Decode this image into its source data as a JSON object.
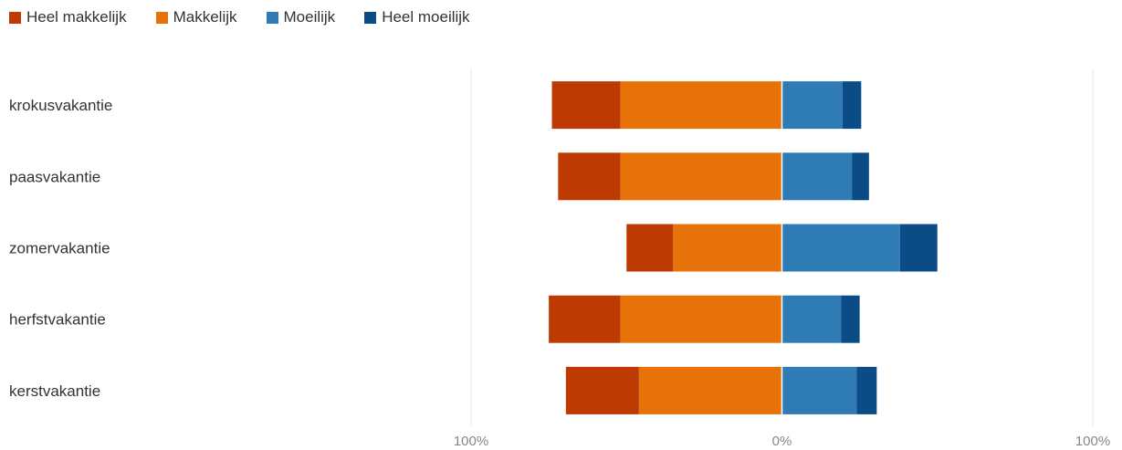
{
  "chart_data": {
    "type": "bar",
    "orientation": "horizontal",
    "stacked": "diverging",
    "categories": [
      "krokusvakantie",
      "paasvakantie",
      "zomervakantie",
      "herfstvakantie",
      "kerstvakantie"
    ],
    "series": [
      {
        "name": "Heel makkelijk",
        "side": "negative",
        "color": "#bd3a02",
        "values": [
          22,
          20,
          15,
          23,
          23.5
        ]
      },
      {
        "name": "Makkelijk",
        "side": "negative",
        "color": "#e8720a",
        "values": [
          52,
          52,
          35,
          52,
          46
        ]
      },
      {
        "name": "Moeilijk",
        "side": "positive",
        "color": "#2e7bb6",
        "values": [
          19.5,
          22.5,
          38,
          19,
          24
        ]
      },
      {
        "name": "Heel moeilijk",
        "side": "positive",
        "color": "#0b4c87",
        "values": [
          6,
          5.5,
          12,
          6,
          6.5
        ]
      }
    ],
    "xlim": [
      -100,
      100
    ],
    "ticks": [
      {
        "value": -100,
        "label": "100%"
      },
      {
        "value": 0,
        "label": "0%"
      },
      {
        "value": 100,
        "label": "100%"
      }
    ],
    "grid": true,
    "legend_position": "top-left"
  }
}
